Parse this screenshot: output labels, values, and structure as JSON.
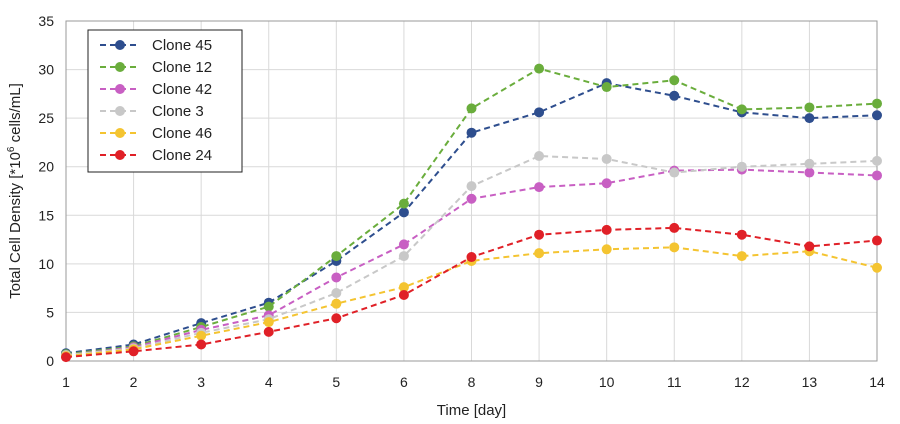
{
  "chart_data": {
    "type": "line",
    "title": "",
    "xlabel": "Time [day]",
    "ylabel": "Total Cell Density [*10",
    "ylabel_superscript": "6",
    "ylabel_suffix": " cells/mL]",
    "categories": [
      "1",
      "2",
      "3",
      "4",
      "5",
      "6",
      "8",
      "9",
      "10",
      "11",
      "12",
      "13",
      "14"
    ],
    "ylim": [
      0,
      35
    ],
    "yticks": [
      0,
      5,
      10,
      15,
      20,
      25,
      30,
      35
    ],
    "grid": true,
    "legend_position": "top-left",
    "series": [
      {
        "name": "Clone 45",
        "color": "#2e4e8e",
        "values": [
          0.8,
          1.7,
          3.9,
          6.0,
          10.3,
          15.3,
          23.5,
          25.6,
          28.6,
          27.3,
          25.6,
          25.0,
          25.3
        ]
      },
      {
        "name": "Clone 12",
        "color": "#6aad3c",
        "values": [
          0.7,
          1.5,
          3.5,
          5.6,
          10.8,
          16.2,
          26.0,
          30.1,
          28.2,
          28.9,
          25.9,
          26.1,
          26.5
        ]
      },
      {
        "name": "Clone 42",
        "color": "#c85fc3",
        "values": [
          0.6,
          1.4,
          3.2,
          4.7,
          8.6,
          12.0,
          16.7,
          17.9,
          18.3,
          19.6,
          19.7,
          19.4,
          19.1
        ]
      },
      {
        "name": "Clone 3",
        "color": "#c8c8c8",
        "values": [
          0.6,
          1.3,
          2.9,
          4.3,
          7.0,
          10.8,
          18.0,
          21.1,
          20.8,
          19.4,
          20.0,
          20.3,
          20.6
        ]
      },
      {
        "name": "Clone 46",
        "color": "#f4c431",
        "values": [
          0.5,
          1.2,
          2.6,
          4.0,
          5.9,
          7.6,
          10.3,
          11.1,
          11.5,
          11.7,
          10.8,
          11.3,
          9.6
        ]
      },
      {
        "name": "Clone 24",
        "color": "#e02027",
        "values": [
          0.4,
          1.0,
          1.7,
          3.0,
          4.4,
          6.8,
          10.7,
          13.0,
          13.5,
          13.7,
          13.0,
          11.8,
          12.4
        ]
      }
    ]
  }
}
